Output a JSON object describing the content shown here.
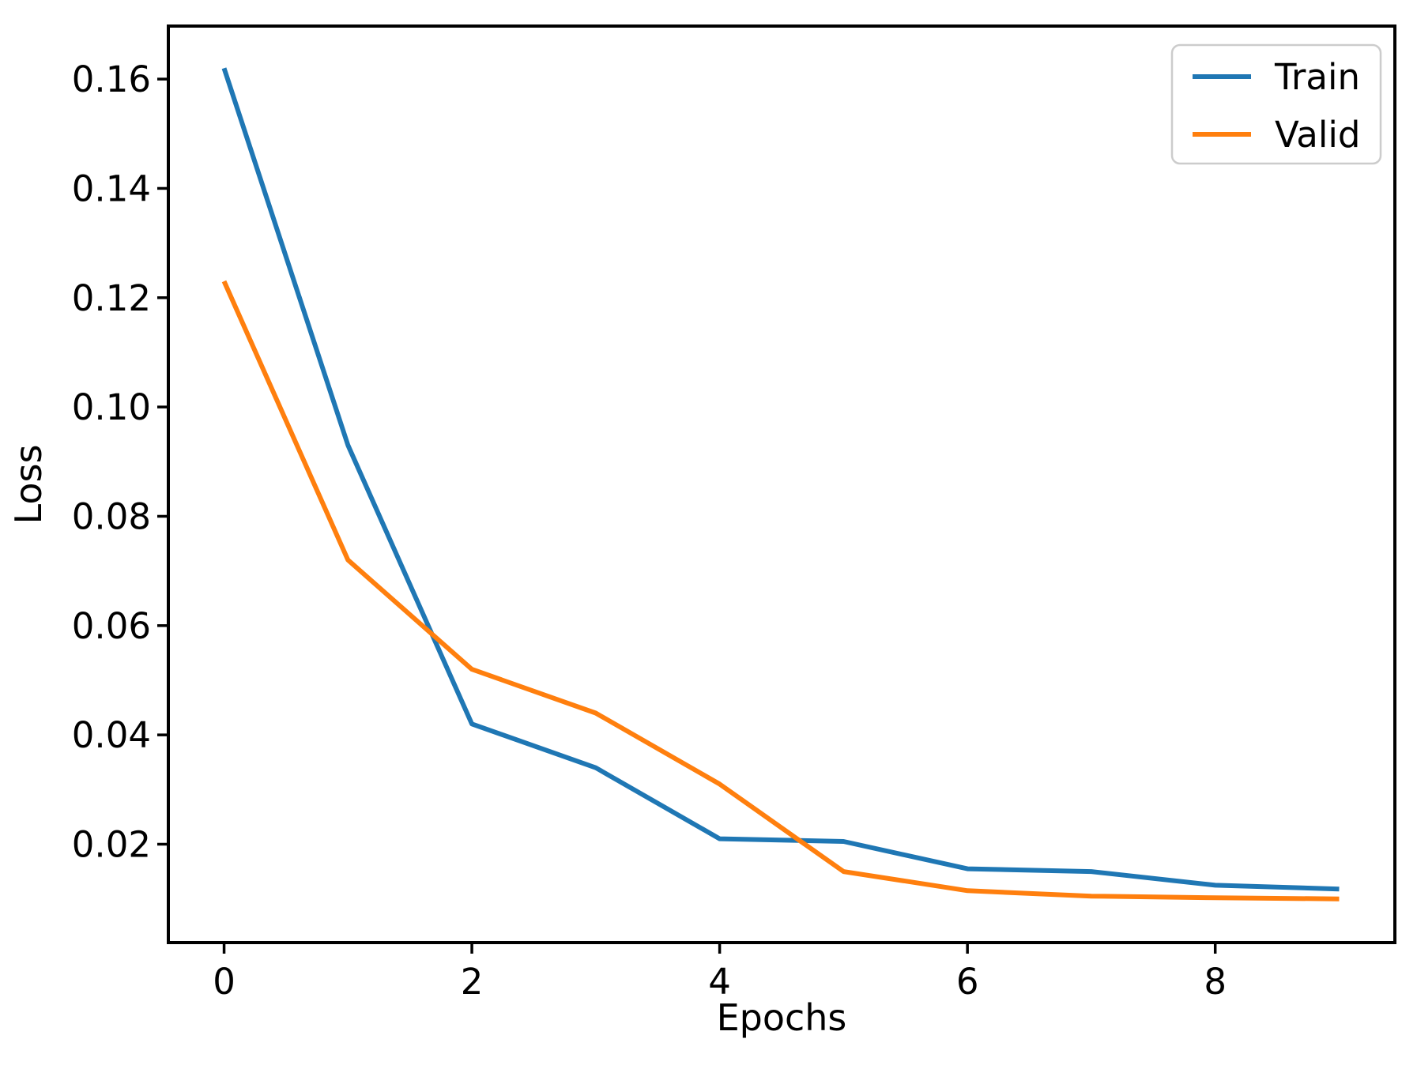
{
  "figure": {
    "background": "#ffffff",
    "frame_color": "#000000"
  },
  "chart_data": {
    "type": "line",
    "title": "",
    "xlabel": "Epochs",
    "ylabel": "Loss",
    "x": [
      0,
      1,
      2,
      3,
      4,
      5,
      6,
      7,
      8,
      9
    ],
    "series": [
      {
        "name": "Train",
        "color": "#1f77b4",
        "values": [
          0.162,
          0.093,
          0.042,
          0.034,
          0.021,
          0.0205,
          0.0155,
          0.015,
          0.0125,
          0.0118
        ]
      },
      {
        "name": "Valid",
        "color": "#ff7f0e",
        "values": [
          0.123,
          0.072,
          0.052,
          0.044,
          0.031,
          0.015,
          0.0115,
          0.0105,
          0.0102,
          0.01
        ]
      }
    ],
    "xlim": [
      -0.45,
      9.45
    ],
    "ylim": [
      0.002,
      0.1697
    ],
    "xticks": [
      0,
      2,
      4,
      6,
      8
    ],
    "yticks": [
      0.02,
      0.04,
      0.06,
      0.08,
      0.1,
      0.12,
      0.14,
      0.16
    ],
    "ytick_decimals": 2,
    "grid": false,
    "legend_position": "upper right",
    "legend_labels": [
      "Train",
      "Valid"
    ]
  }
}
